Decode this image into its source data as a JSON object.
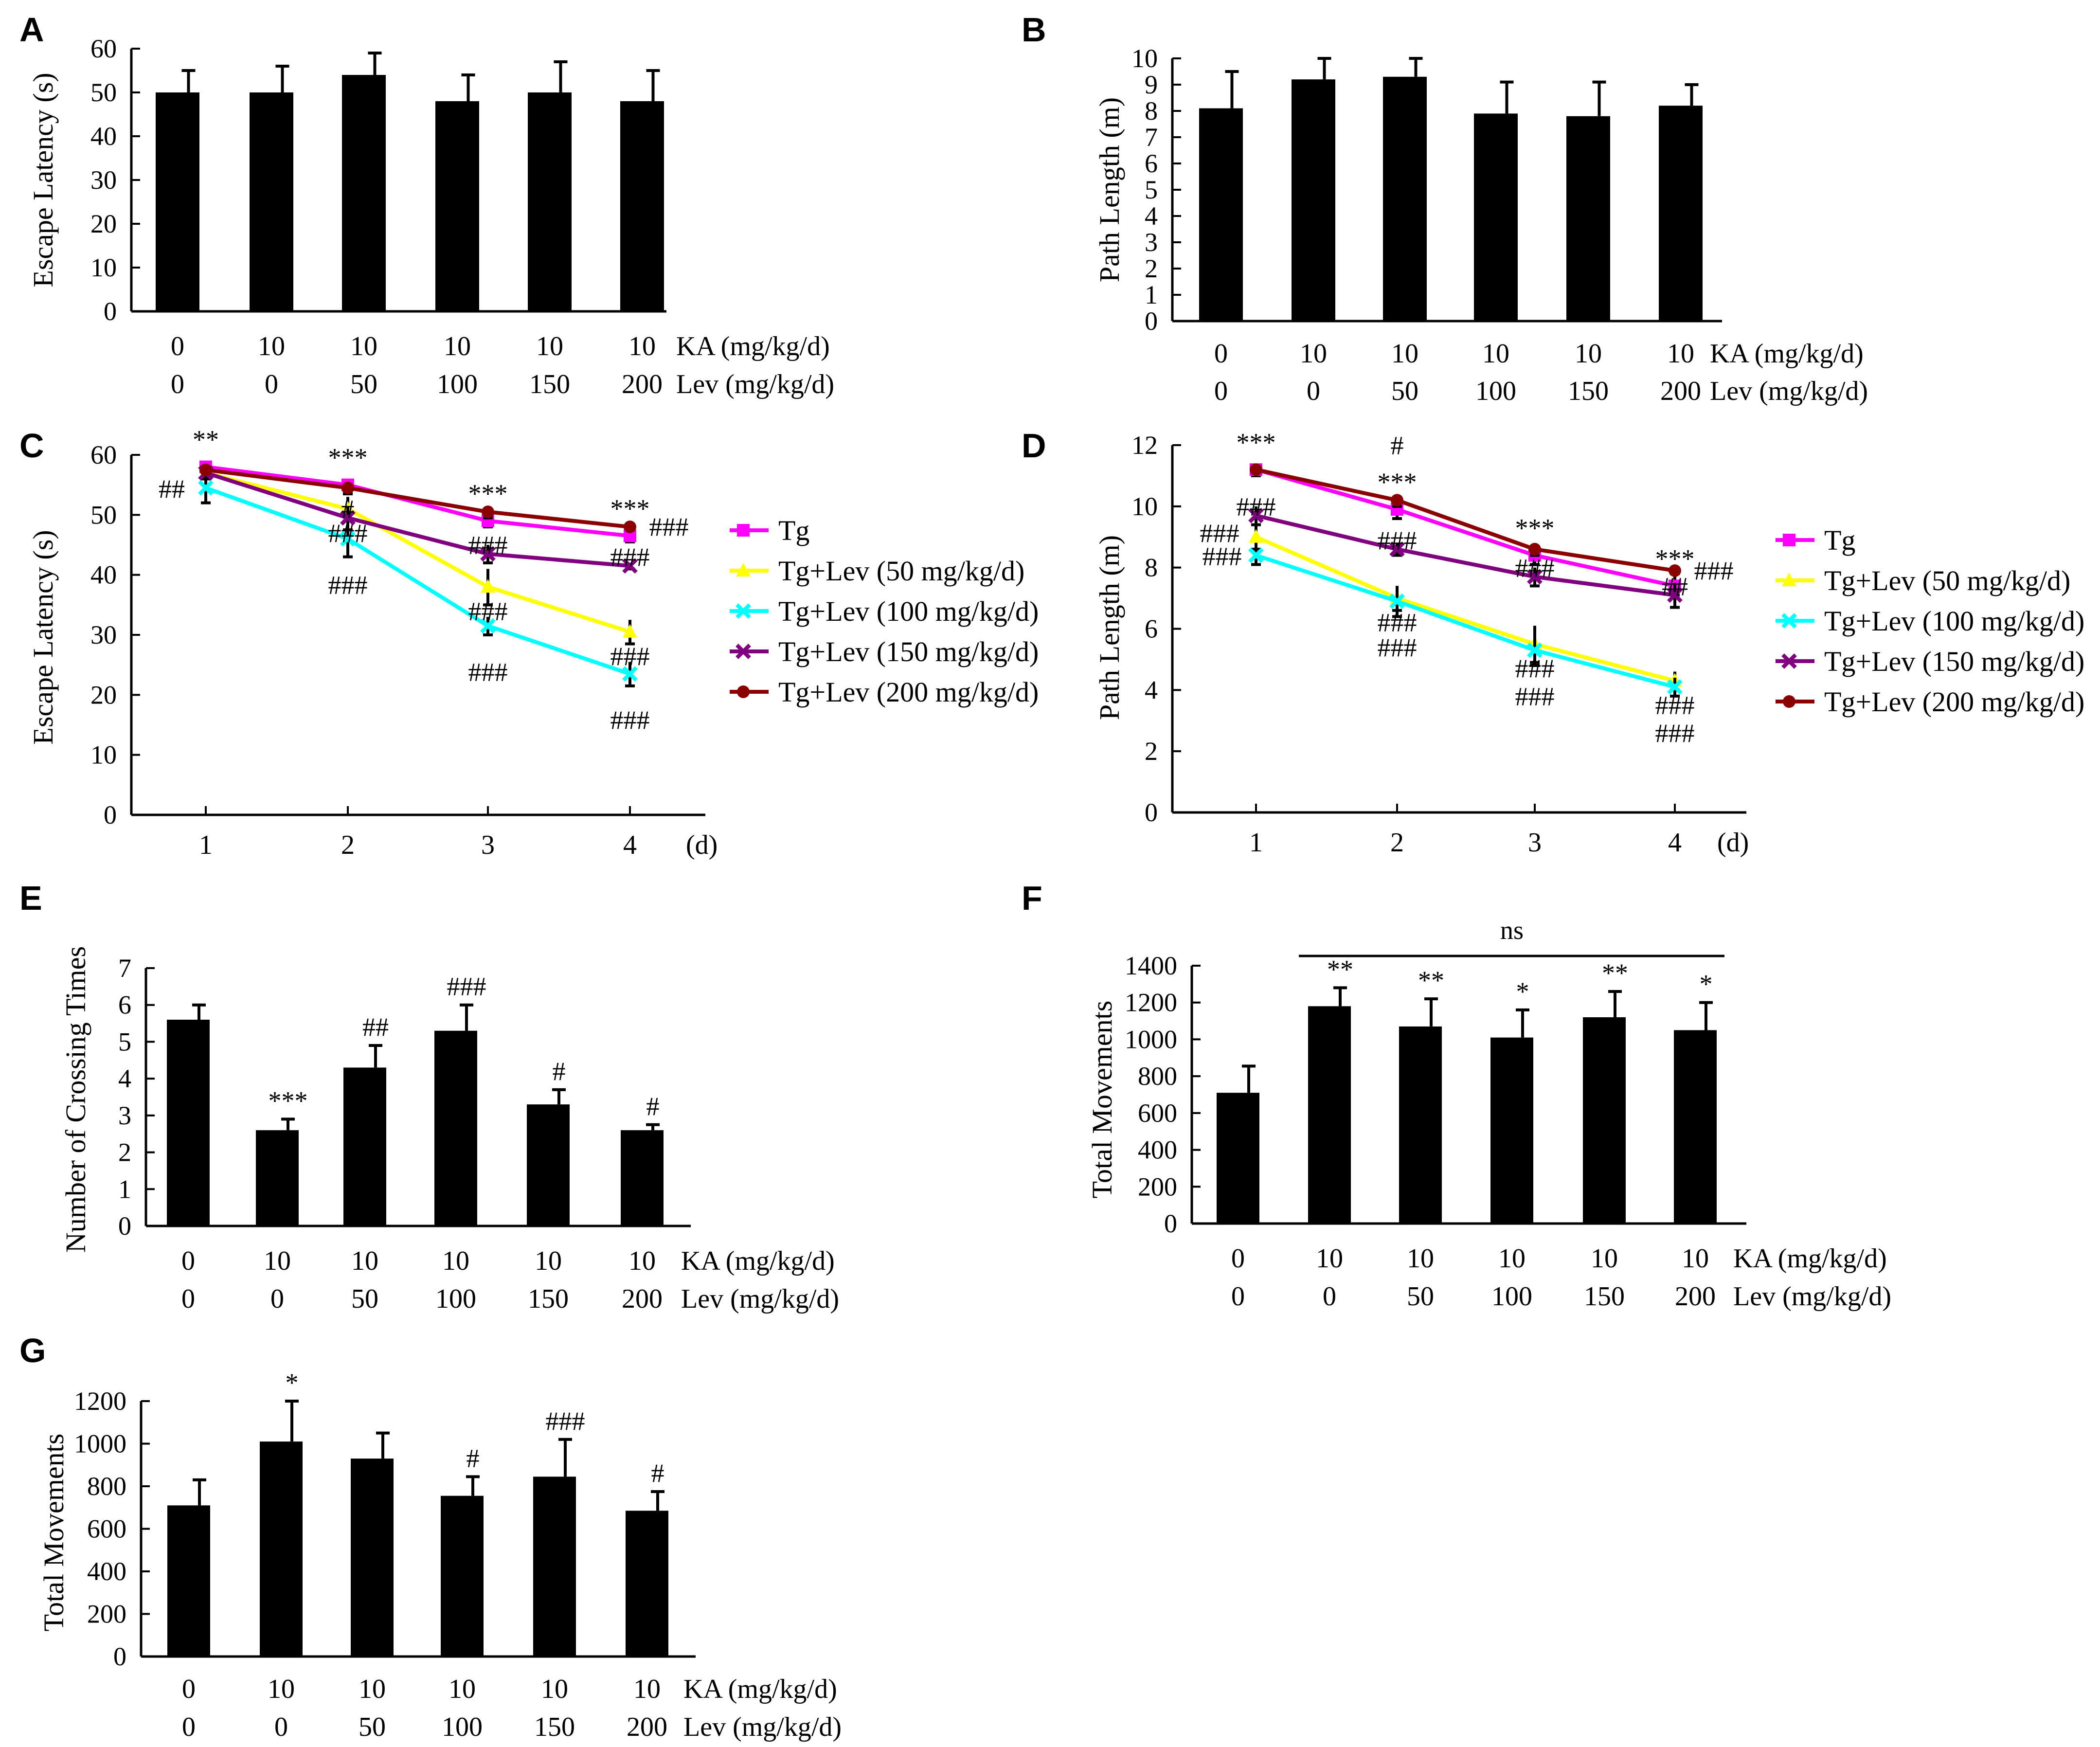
{
  "colors": {
    "bar": "#000000",
    "tg": "#ff00ff",
    "lev50": "#ffff00",
    "lev100": "#00ffff",
    "lev150": "#800080",
    "lev200": "#8b0000",
    "ann_tg": "#e0208f",
    "ann_lev50": "#f2e31f",
    "ann_lev100": "#33d9e0",
    "ann_lev150": "#8b2e9a",
    "ann_lev200": "#b22222"
  },
  "chart_data": [
    {
      "panel": "A",
      "type": "bar",
      "ylabel": "Escape Latency (s)",
      "ylim": [
        0,
        60
      ],
      "yticks": [
        "0",
        "10",
        "20",
        "30",
        "40",
        "50",
        "60"
      ],
      "ka_row": [
        "0",
        "10",
        "10",
        "10",
        "10",
        "10"
      ],
      "ka_label": "KA (mg/kg/d)",
      "lev_row": [
        "0",
        "0",
        "50",
        "100",
        "150",
        "200"
      ],
      "lev_label": "Lev (mg/kg/d)",
      "values": [
        50,
        50,
        54,
        48,
        50,
        48
      ],
      "errors": [
        5,
        6,
        5,
        6,
        7,
        7
      ],
      "annotations": [
        "",
        "",
        "",
        "",
        "",
        ""
      ]
    },
    {
      "panel": "B",
      "type": "bar",
      "ylabel": "Path Length (m)",
      "ylim": [
        0,
        10
      ],
      "yticks": [
        "0",
        "1",
        "2",
        "3",
        "4",
        "5",
        "6",
        "7",
        "8",
        "9",
        "10"
      ],
      "ka_row": [
        "0",
        "10",
        "10",
        "10",
        "10",
        "10"
      ],
      "ka_label": "KA (mg/kg/d)",
      "lev_row": [
        "0",
        "0",
        "50",
        "100",
        "150",
        "200"
      ],
      "lev_label": "Lev (mg/kg/d)",
      "values": [
        8.1,
        9.2,
        9.3,
        7.9,
        7.8,
        8.2
      ],
      "errors": [
        1.4,
        0.8,
        0.7,
        1.2,
        1.3,
        0.8
      ],
      "annotations": [
        "",
        "",
        "",
        "",
        "",
        ""
      ]
    },
    {
      "panel": "C",
      "type": "line",
      "ylabel": "Escape Latency (s)",
      "xlabel": "(d)",
      "ylim": [
        0,
        60
      ],
      "yticks": [
        "0",
        "10",
        "20",
        "30",
        "40",
        "50",
        "60"
      ],
      "x": [
        "1",
        "2",
        "3",
        "4"
      ],
      "series": [
        {
          "name": "Tg",
          "values": [
            58,
            55,
            49,
            46.5
          ],
          "errors": [
            0.5,
            1,
            1,
            1
          ]
        },
        {
          "name": "Tg+Lev (50 mg/kg/d)",
          "values": [
            57,
            51,
            38,
            30.5
          ],
          "errors": [
            1,
            2,
            3,
            2
          ]
        },
        {
          "name": "Tg+Lev (100 mg/kg/d)",
          "values": [
            54.5,
            46,
            31.5,
            23.5
          ],
          "errors": [
            2.5,
            3,
            1.5,
            2
          ]
        },
        {
          "name": "Tg+Lev (150 mg/kg/d)",
          "values": [
            57,
            49.5,
            43.5,
            41.5
          ],
          "errors": [
            1,
            2,
            1.5,
            0.5
          ]
        },
        {
          "name": "Tg+Lev (200 mg/kg/d)",
          "values": [
            57.5,
            54.5,
            50.5,
            48
          ],
          "errors": [
            0.5,
            1,
            1,
            0.5
          ]
        }
      ],
      "annotations": [
        {
          "text": "**",
          "series": 0,
          "x": "1"
        },
        {
          "text": "***",
          "series": 0,
          "x": "2"
        },
        {
          "text": "***",
          "series": 0,
          "x": "3"
        },
        {
          "text": "***",
          "series": 0,
          "x": "4"
        },
        {
          "text": "###",
          "series": 4,
          "x": "4"
        },
        {
          "text": "##",
          "series": 2,
          "x": "1"
        },
        {
          "text": "###",
          "series": 1,
          "x": "2"
        },
        {
          "text": "###",
          "series": 2,
          "x": "2"
        },
        {
          "text": "#",
          "series": 3,
          "x": "2"
        },
        {
          "text": "###",
          "series": 3,
          "x": "3"
        },
        {
          "text": "###",
          "series": 1,
          "x": "3"
        },
        {
          "text": "###",
          "series": 2,
          "x": "3"
        },
        {
          "text": "###",
          "series": 3,
          "x": "4"
        },
        {
          "text": "###",
          "series": 1,
          "x": "4"
        },
        {
          "text": "###",
          "series": 2,
          "x": "4"
        }
      ]
    },
    {
      "panel": "D",
      "type": "line",
      "ylabel": "Path Length (m)",
      "xlabel": "(d)",
      "ylim": [
        0,
        12
      ],
      "yticks": [
        "0",
        "2",
        "4",
        "6",
        "8",
        "10",
        "12"
      ],
      "x": [
        "1",
        "2",
        "3",
        "4"
      ],
      "series": [
        {
          "name": "Tg",
          "values": [
            11.2,
            9.9,
            8.4,
            7.4
          ],
          "errors": [
            0.2,
            0.3,
            0.3,
            0.3
          ]
        },
        {
          "name": "Tg+Lev (50 mg/kg/d)",
          "values": [
            9,
            7,
            5.5,
            4.3
          ],
          "errors": [
            0.4,
            0.4,
            0.6,
            0.3
          ]
        },
        {
          "name": "Tg+Lev (100 mg/kg/d)",
          "values": [
            8.4,
            6.9,
            5.3,
            4.1
          ],
          "errors": [
            0.3,
            0.5,
            0.5,
            0.3
          ]
        },
        {
          "name": "Tg+Lev (150 mg/kg/d)",
          "values": [
            9.7,
            8.6,
            7.7,
            7.1
          ],
          "errors": [
            0.3,
            0.2,
            0.3,
            0.4
          ]
        },
        {
          "name": "Tg+Lev (200 mg/kg/d)",
          "values": [
            11.2,
            10.2,
            8.6,
            7.9
          ],
          "errors": [
            0.1,
            0.2,
            0.2,
            0.1
          ]
        }
      ],
      "annotations": [
        {
          "text": "***",
          "series": 0,
          "x": "1"
        },
        {
          "text": "#",
          "series": 4,
          "x": "2"
        },
        {
          "text": "***",
          "series": 0,
          "x": "2"
        },
        {
          "text": "***",
          "series": 0,
          "x": "3"
        },
        {
          "text": "***",
          "series": 0,
          "x": "4"
        },
        {
          "text": "###",
          "series": 4,
          "x": "4"
        },
        {
          "text": "###",
          "series": 1,
          "x": "1"
        },
        {
          "text": "###",
          "series": 3,
          "x": "1"
        },
        {
          "text": "###",
          "series": 2,
          "x": "1"
        },
        {
          "text": "###",
          "series": 3,
          "x": "2"
        },
        {
          "text": "###",
          "series": 1,
          "x": "2"
        },
        {
          "text": "###",
          "series": 2,
          "x": "2"
        },
        {
          "text": "###",
          "series": 3,
          "x": "3"
        },
        {
          "text": "###",
          "series": 1,
          "x": "3"
        },
        {
          "text": "###",
          "series": 2,
          "x": "3"
        },
        {
          "text": "##",
          "series": 3,
          "x": "4"
        },
        {
          "text": "###",
          "series": 1,
          "x": "4"
        },
        {
          "text": "###",
          "series": 2,
          "x": "4"
        }
      ]
    },
    {
      "panel": "E",
      "type": "bar",
      "ylabel": "Number of Crossing Times",
      "ylim": [
        0,
        7
      ],
      "yticks": [
        "0",
        "1",
        "2",
        "3",
        "4",
        "5",
        "6",
        "7"
      ],
      "ka_row": [
        "0",
        "10",
        "10",
        "10",
        "10",
        "10"
      ],
      "ka_label": "KA (mg/kg/d)",
      "lev_row": [
        "0",
        "0",
        "50",
        "100",
        "150",
        "200"
      ],
      "lev_label": "Lev (mg/kg/d)",
      "values": [
        5.6,
        2.6,
        4.3,
        5.3,
        3.3,
        2.6
      ],
      "errors": [
        0.4,
        0.3,
        0.6,
        0.7,
        0.4,
        0.15
      ],
      "annotations": [
        "",
        "***",
        "##",
        "###",
        "#",
        "#"
      ]
    },
    {
      "panel": "F",
      "type": "bar",
      "ylabel": "Total Movements",
      "ylim": [
        0,
        1400
      ],
      "yticks": [
        "0",
        "200",
        "400",
        "600",
        "800",
        "1000",
        "1200",
        "1400"
      ],
      "ka_row": [
        "0",
        "10",
        "10",
        "10",
        "10",
        "10"
      ],
      "ka_label": "KA (mg/kg/d)",
      "lev_row": [
        "0",
        "0",
        "50",
        "100",
        "150",
        "200"
      ],
      "lev_label": "Lev (mg/kg/d)",
      "values": [
        710,
        1180,
        1070,
        1010,
        1120,
        1050
      ],
      "errors": [
        145,
        100,
        150,
        150,
        140,
        150
      ],
      "annotations": [
        "",
        "**",
        "**",
        "*",
        "**",
        "*"
      ],
      "bracket_label": "ns"
    },
    {
      "panel": "G",
      "type": "bar",
      "ylabel": "Total Movements",
      "ylim": [
        0,
        1200
      ],
      "yticks": [
        "0",
        "200",
        "400",
        "600",
        "800",
        "1000",
        "1200"
      ],
      "ka_row": [
        "0",
        "10",
        "10",
        "10",
        "10",
        "10"
      ],
      "ka_label": "KA (mg/kg/d)",
      "lev_row": [
        "0",
        "0",
        "50",
        "100",
        "150",
        "200"
      ],
      "lev_label": "Lev (mg/kg/d)",
      "values": [
        710,
        1010,
        930,
        755,
        845,
        685
      ],
      "errors": [
        120,
        190,
        120,
        90,
        175,
        90
      ],
      "annotations": [
        "",
        "*",
        "",
        "#",
        "###",
        "#"
      ]
    }
  ]
}
